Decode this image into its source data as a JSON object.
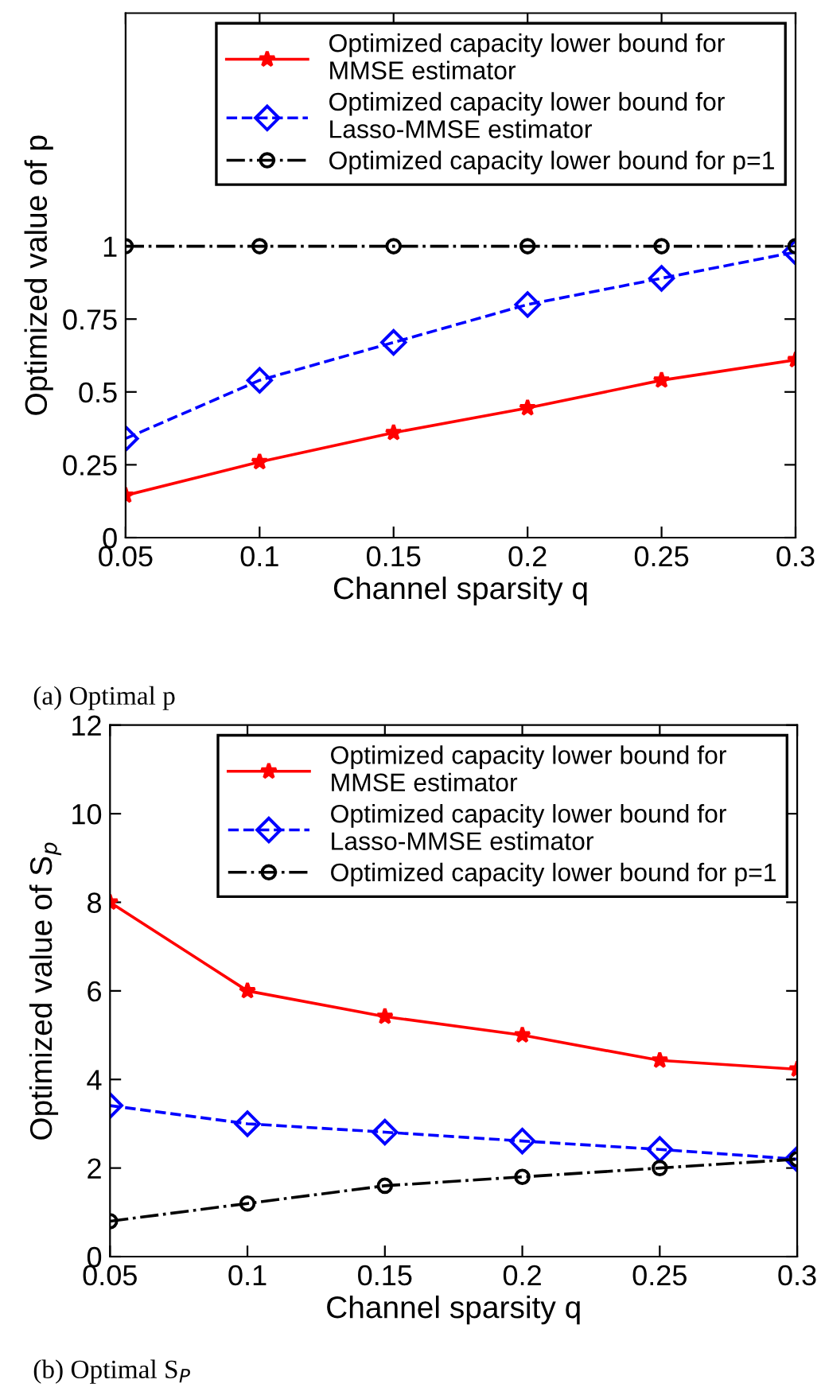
{
  "chart_data": [
    {
      "type": "line",
      "xlabel": "Channel sparsity q",
      "ylabel": "Optimized value of p",
      "x": [
        0.05,
        0.1,
        0.15,
        0.2,
        0.25,
        0.3
      ],
      "xlim": [
        0.05,
        0.3
      ],
      "xticks": [
        0.05,
        0.1,
        0.15,
        0.2,
        0.25,
        0.3
      ],
      "ylim": [
        0,
        1.8
      ],
      "yticks": [
        0,
        0.25,
        0.5,
        0.75,
        1
      ],
      "legend": "top right",
      "grid": false,
      "annotations": [
        "(a) Optimal p"
      ],
      "series": [
        {
          "name": "Optimized capacity lower bound for\nMMSE estimator",
          "color": "#ff0000",
          "marker": "star",
          "line_style": "solid",
          "values": [
            0.145,
            0.26,
            0.36,
            0.445,
            0.54,
            0.61
          ]
        },
        {
          "name": "Optimized capacity lower bound for\nLasso-MMSE estimator",
          "color": "#0000ff",
          "marker": "diamond",
          "line_style": "dashed",
          "values": [
            0.34,
            0.54,
            0.67,
            0.8,
            0.89,
            0.98
          ]
        },
        {
          "name": "Optimized capacity lower bound for p=1",
          "color": "#000000",
          "marker": "circle",
          "line_style": "dashdot",
          "values": [
            1,
            1,
            1,
            1,
            1,
            1
          ]
        }
      ]
    },
    {
      "type": "line",
      "xlabel": "Channel sparsity q",
      "ylabel": "Optimized value of S$_{p}$",
      "x": [
        0.05,
        0.1,
        0.15,
        0.2,
        0.25,
        0.3
      ],
      "xlim": [
        0.05,
        0.3
      ],
      "xticks": [
        0.05,
        0.1,
        0.15,
        0.2,
        0.25,
        0.3
      ],
      "ylim": [
        0,
        12
      ],
      "yticks": [
        0,
        2,
        4,
        6,
        8,
        10,
        12
      ],
      "legend": "top right",
      "grid": false,
      "annotations": [
        "(b) Optimal S$_{P}$"
      ],
      "series": [
        {
          "name": "Optimized capacity lower bound for\nMMSE estimator",
          "color": "#ff0000",
          "marker": "star",
          "line_style": "solid",
          "values": [
            8,
            6,
            5.42,
            5,
            4.43,
            4.23
          ]
        },
        {
          "name": "Optimized capacity lower bound for\nLasso-MMSE estimator",
          "color": "#0000ff",
          "marker": "diamond",
          "line_style": "dashed",
          "values": [
            3.41,
            3.0,
            2.81,
            2.61,
            2.42,
            2.2
          ]
        },
        {
          "name": "Optimized capacity lower bound for p=1",
          "color": "#000000",
          "marker": "circle",
          "line_style": "dashdot",
          "values": [
            0.8,
            1.2,
            1.6,
            1.8,
            2.0,
            2.2
          ]
        }
      ]
    }
  ]
}
